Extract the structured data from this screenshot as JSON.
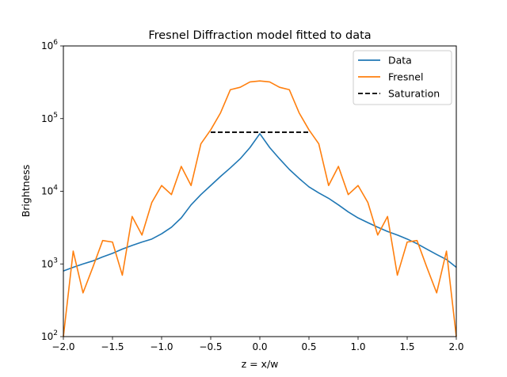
{
  "chart_data": {
    "type": "line",
    "title": "Fresnel Diffraction model fitted to data",
    "xlabel": "z = x/w",
    "ylabel": "Brightness",
    "xlim": [
      -2.0,
      2.0
    ],
    "ylim": [
      100,
      1000000
    ],
    "yscale": "log",
    "grid": false,
    "legend_position": "upper right",
    "x_ticks": [
      -2.0,
      -1.5,
      -1.0,
      -0.5,
      0.0,
      0.5,
      1.0,
      1.5,
      2.0
    ],
    "x_tick_labels": [
      "−2.0",
      "−1.5",
      "−1.0",
      "−0.5",
      "0.0",
      "0.5",
      "1.0",
      "1.5",
      "2.0"
    ],
    "y_ticks": [
      100,
      1000,
      10000,
      100000,
      1000000
    ],
    "y_tick_base": "10",
    "y_tick_exponents": [
      "2",
      "3",
      "4",
      "5",
      "6"
    ],
    "series": [
      {
        "name": "Data",
        "color": "#1f77b4",
        "style": "solid",
        "x": [
          -2.0,
          -1.9,
          -1.8,
          -1.7,
          -1.6,
          -1.5,
          -1.4,
          -1.3,
          -1.2,
          -1.1,
          -1.0,
          -0.9,
          -0.8,
          -0.7,
          -0.6,
          -0.5,
          -0.4,
          -0.3,
          -0.2,
          -0.1,
          0.0,
          0.1,
          0.2,
          0.3,
          0.4,
          0.5,
          0.6,
          0.7,
          0.8,
          0.9,
          1.0,
          1.1,
          1.2,
          1.3,
          1.4,
          1.5,
          1.6,
          1.7,
          1.8,
          1.9,
          2.0
        ],
        "y": [
          800,
          900,
          1000,
          1100,
          1250,
          1400,
          1600,
          1800,
          2000,
          2200,
          2600,
          3200,
          4300,
          6500,
          9000,
          12000,
          16000,
          21000,
          28000,
          40000,
          62000,
          40000,
          28000,
          20000,
          15000,
          11500,
          9500,
          8000,
          6500,
          5200,
          4300,
          3700,
          3200,
          2800,
          2500,
          2200,
          1900,
          1600,
          1350,
          1150,
          900
        ]
      },
      {
        "name": "Fresnel",
        "color": "#ff7f0e",
        "style": "solid",
        "x": [
          -2.0,
          -1.9,
          -1.8,
          -1.7,
          -1.6,
          -1.5,
          -1.4,
          -1.3,
          -1.2,
          -1.1,
          -1.0,
          -0.9,
          -0.8,
          -0.7,
          -0.6,
          -0.5,
          -0.4,
          -0.3,
          -0.2,
          -0.1,
          0.0,
          0.1,
          0.2,
          0.3,
          0.4,
          0.5,
          0.6,
          0.7,
          0.8,
          0.9,
          1.0,
          1.1,
          1.2,
          1.3,
          1.4,
          1.5,
          1.6,
          1.7,
          1.8,
          1.9,
          2.0
        ],
        "y": [
          100,
          1500,
          400,
          900,
          2100,
          2000,
          700,
          4500,
          2500,
          7000,
          12000,
          9000,
          22000,
          12000,
          45000,
          70000,
          120000,
          250000,
          270000,
          320000,
          330000,
          320000,
          270000,
          250000,
          120000,
          70000,
          45000,
          12000,
          22000,
          9000,
          12000,
          7000,
          2500,
          4500,
          700,
          2000,
          2100,
          900,
          400,
          1500,
          100
        ]
      },
      {
        "name": "Saturation",
        "color": "#000000",
        "style": "dashed",
        "x": [
          -0.5,
          0.5
        ],
        "y": [
          65000,
          65000
        ]
      }
    ]
  }
}
